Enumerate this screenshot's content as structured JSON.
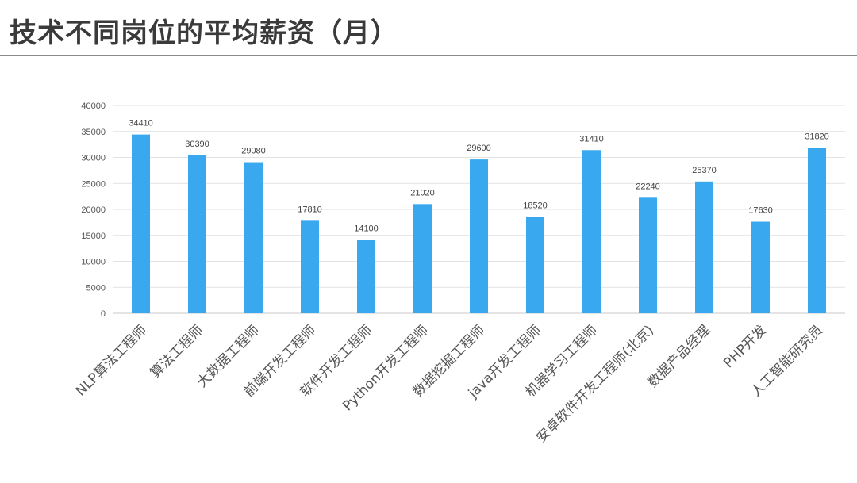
{
  "page": {
    "title": "技术不同岗位的平均薪资（月）"
  },
  "chart_data": {
    "type": "bar",
    "categories": [
      "NLP算法工程师",
      "算法工程师",
      "大数据工程师",
      "前端开发工程师",
      "软件开发工程师",
      "Python开发工程师",
      "数据挖掘工程师",
      "java开发工程师",
      "机器学习工程师",
      "安卓软件开发工程师(北京)",
      "数据产品经理",
      "PHP开发",
      "人工智能研究员"
    ],
    "values": [
      34410,
      30390,
      29080,
      17810,
      14100,
      21020,
      29600,
      18520,
      31410,
      22240,
      25370,
      17630,
      31820
    ],
    "ylim": [
      0,
      40000
    ],
    "yticks": [
      0,
      5000,
      10000,
      15000,
      20000,
      25000,
      30000,
      35000,
      40000
    ],
    "grid": true,
    "bar_color": "#3aa8ee",
    "data_labels": true
  }
}
